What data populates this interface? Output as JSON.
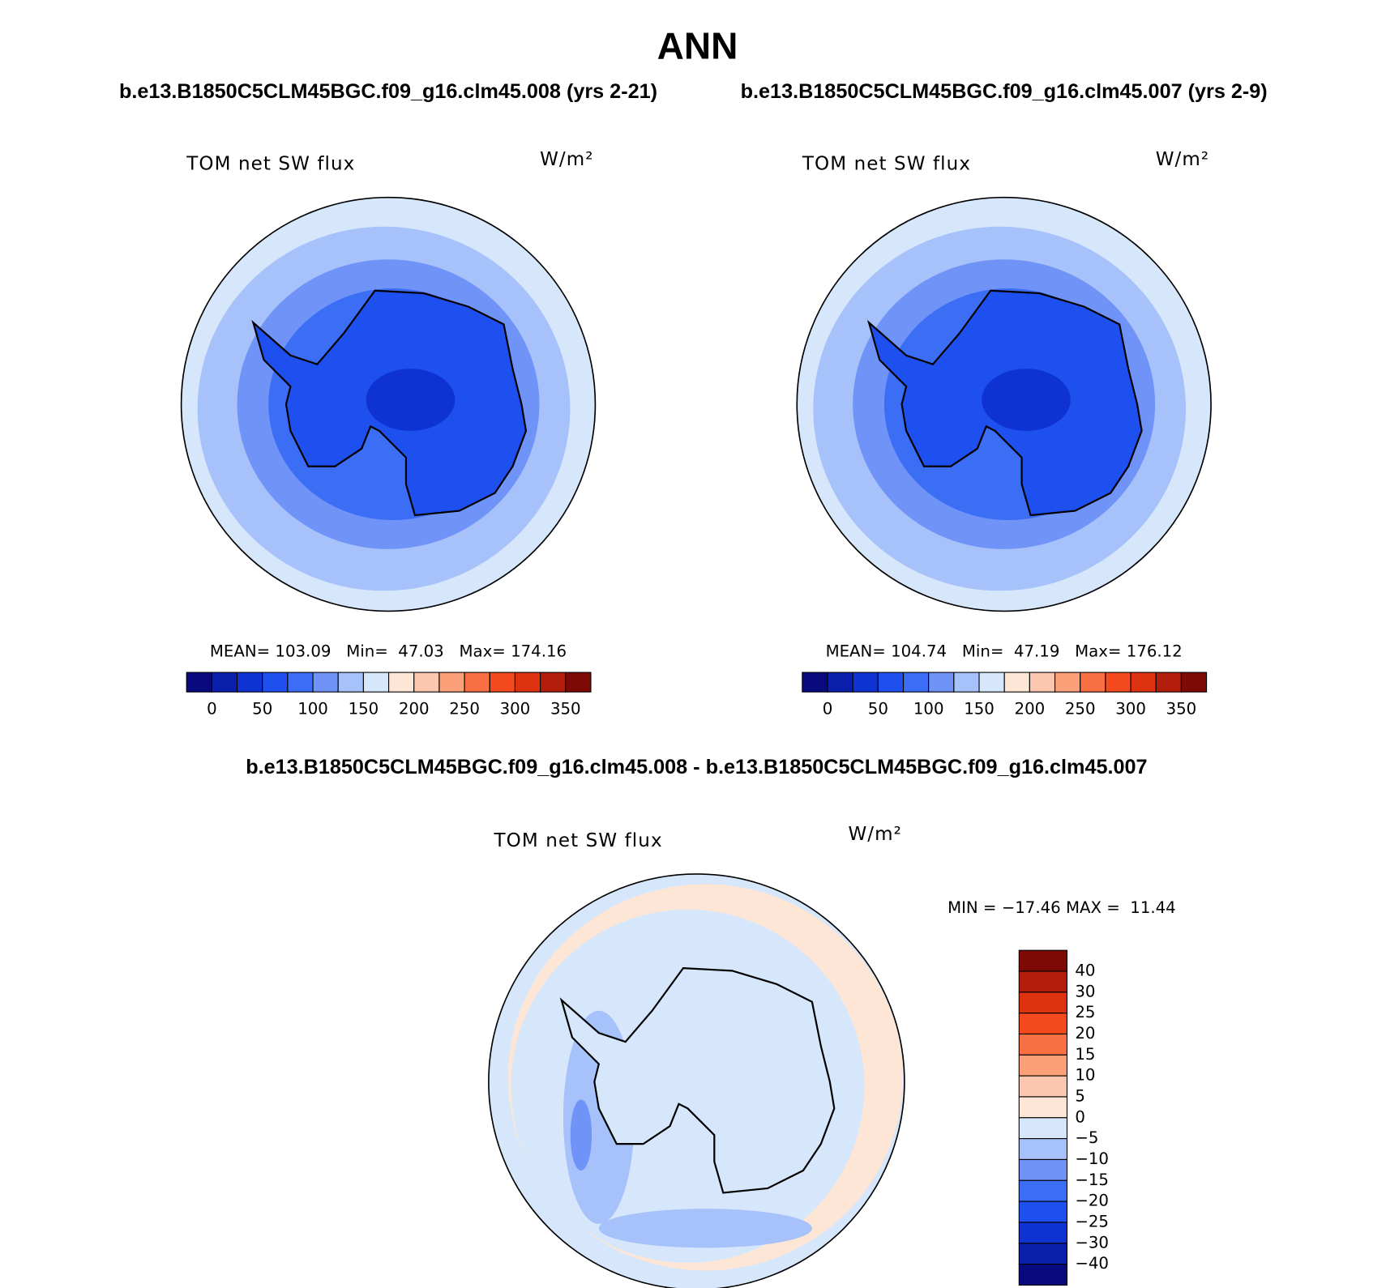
{
  "title": "ANN",
  "panels": [
    {
      "header": "b.e13.B1850C5CLM45BGC.f09_g16.clm45.008 (yrs 2-21)",
      "label": "TOM net SW flux",
      "units": "W/m²",
      "stats": "MEAN= 103.09   Min=  47.03   Max= 174.16",
      "colorbar": {
        "labels": [
          "0",
          "50",
          "100",
          "150",
          "200",
          "250",
          "300",
          "350"
        ]
      }
    },
    {
      "header": "b.e13.B1850C5CLM45BGC.f09_g16.clm45.007 (yrs 2-9)",
      "label": "TOM net SW flux",
      "units": "W/m²",
      "stats": "MEAN= 104.74   Min=  47.19   Max= 176.12",
      "colorbar": {
        "labels": [
          "0",
          "50",
          "100",
          "150",
          "200",
          "250",
          "300",
          "350"
        ]
      }
    },
    {
      "header": "b.e13.B1850C5CLM45BGC.f09_g16.clm45.008 - b.e13.B1850C5CLM45BGC.f09_g16.clm45.007",
      "label": "TOM net SW flux",
      "units": "W/m²",
      "stats": "MIN = −17.46 MAX =  11.44",
      "colorbar": {
        "labels": [
          "40",
          "30",
          "25",
          "20",
          "15",
          "10",
          "5",
          "0",
          "−5",
          "−10",
          "−15",
          "−20",
          "−25",
          "−30",
          "−40"
        ]
      }
    }
  ],
  "colors": [
    "#0a0a80",
    "#0a1fac",
    "#0f33d2",
    "#1e50f0",
    "#3c6ef5",
    "#6f93f7",
    "#a7c1fa",
    "#d6e6fb",
    "#fde6d6",
    "#fcc7b0",
    "#fba079",
    "#f87044",
    "#f44a1e",
    "#de3210",
    "#b21e0b",
    "#7f0a05"
  ]
}
